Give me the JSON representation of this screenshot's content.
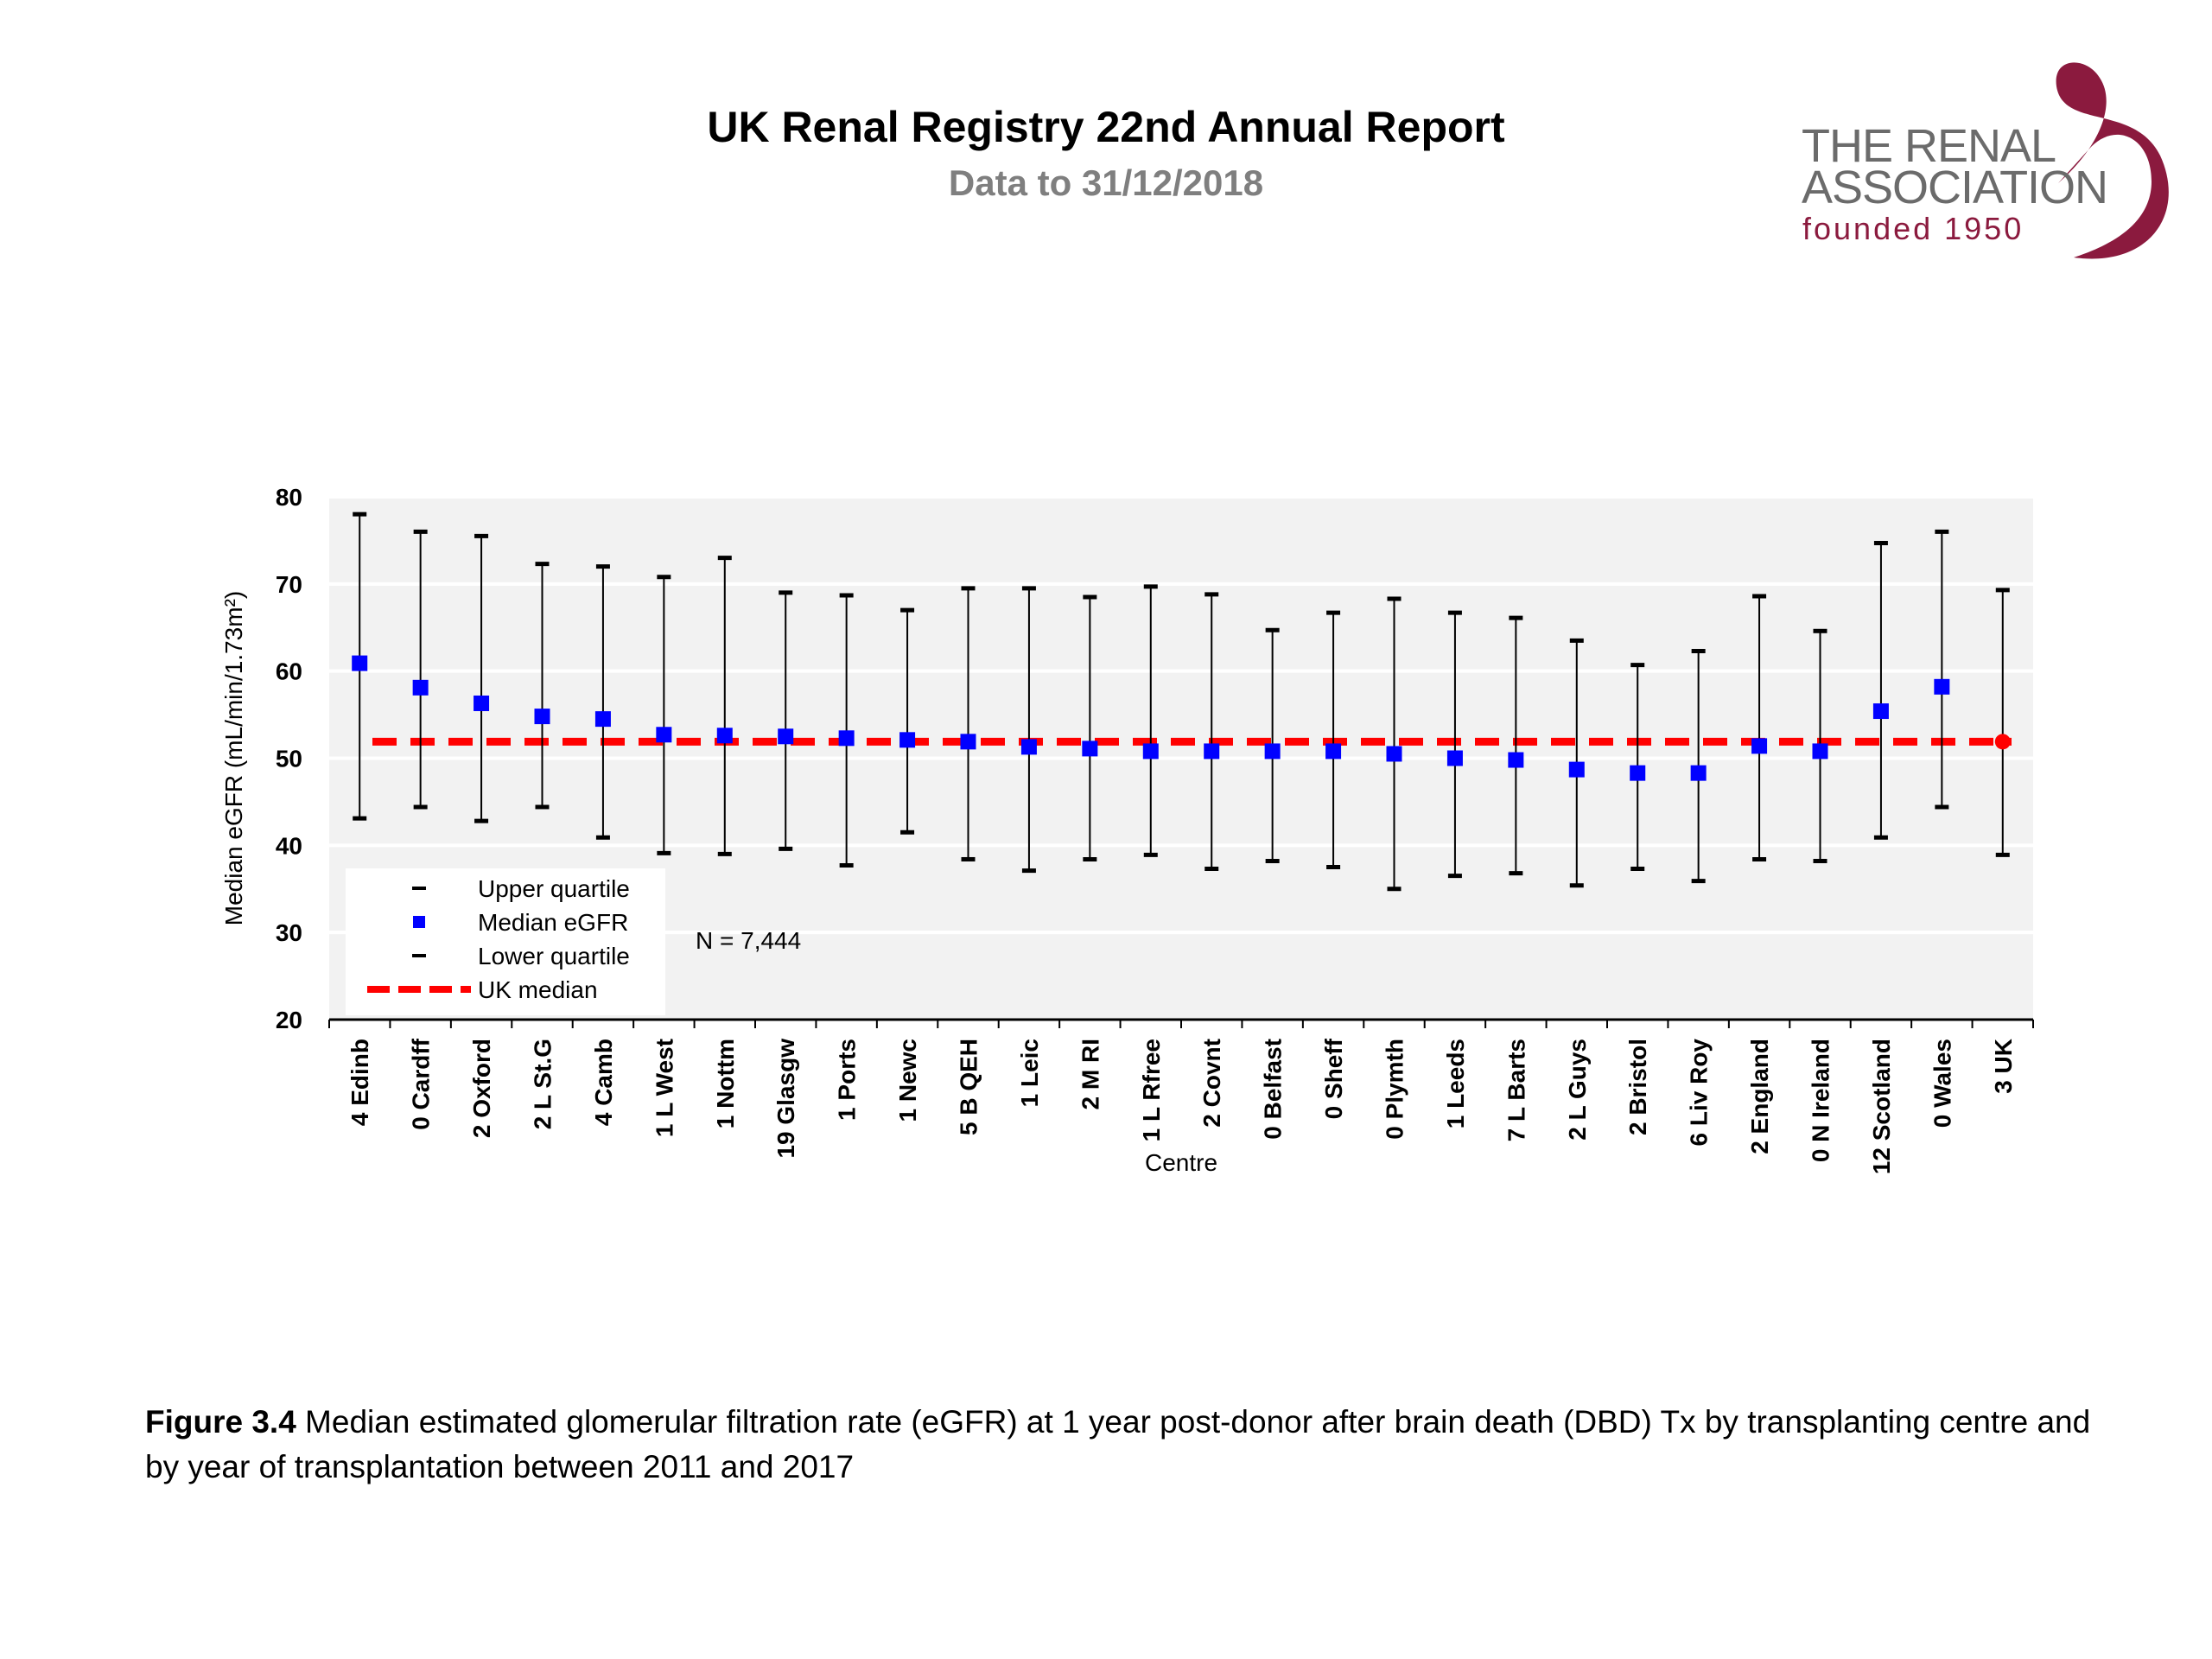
{
  "header": {
    "title": "UK Renal Registry 22nd Annual Report",
    "subtitle": "Data to 31/12/2018"
  },
  "logo": {
    "line1": "THE RENAL",
    "line2": "ASSOCIATION",
    "line3": "founded 1950"
  },
  "caption": {
    "label": "Figure 3.4",
    "text": " Median estimated glomerular filtration rate (eGFR) at 1 year post-donor after brain death (DBD) Tx by transplanting centre and by year of transplantation between 2011 and 2017"
  },
  "chart_data": {
    "type": "scatter",
    "xlabel": "Centre",
    "ylabel": "Median eGFR (mL/min/1.73m²)",
    "ylim": [
      20,
      80
    ],
    "yticks": [
      20,
      30,
      40,
      50,
      60,
      70,
      80
    ],
    "grid": true,
    "annotation": "N = 7,444",
    "uk_median": 51.9,
    "legend": {
      "placement": "bottom-left",
      "entries": [
        "Upper quartile",
        "Median eGFR",
        "Lower quartile",
        "UK median"
      ]
    },
    "colors": {
      "median": "#0000ff",
      "uk_median_line": "#ff0000",
      "whisker": "#000000",
      "plot_bg": "#f2f2f2"
    },
    "categories": [
      "4 Edinb",
      "0 Cardff",
      "2 Oxford",
      "2 L St.G",
      "4 Camb",
      "1 L West",
      "1 Nottm",
      "19 Glasgw",
      "1 Ports",
      "1 Newc",
      "5 B QEH",
      "1 Leic",
      "2 M RI",
      "1 L Rfree",
      "2 Covnt",
      "0 Belfast",
      "0 Sheff",
      "0 Plymth",
      "1 Leeds",
      "7 L Barts",
      "2 L Guys",
      "2 Bristol",
      "6 Liv Roy",
      "2 England",
      "0 N Ireland",
      "12 Scotland",
      "0 Wales",
      "3 UK"
    ],
    "series": [
      {
        "name": "Upper quartile",
        "values": [
          78,
          76,
          75.5,
          72.3,
          72,
          70.8,
          73,
          69,
          68.7,
          67,
          69.5,
          69.5,
          68.5,
          69.7,
          68.8,
          64.7,
          66.7,
          68.3,
          66.7,
          66.1,
          63.5,
          60.7,
          62.3,
          68.6,
          64.6,
          74.7,
          76,
          69.3
        ]
      },
      {
        "name": "Median eGFR",
        "values": [
          60.9,
          58.1,
          56.3,
          54.8,
          54.5,
          52.7,
          52.6,
          52.5,
          52.3,
          52.1,
          51.9,
          51.3,
          51.1,
          50.8,
          50.8,
          50.8,
          50.8,
          50.5,
          50.0,
          49.8,
          48.7,
          48.3,
          48.3,
          51.4,
          50.8,
          55.4,
          58.2,
          51.9
        ]
      },
      {
        "name": "Lower quartile",
        "values": [
          43.1,
          44.4,
          42.8,
          44.4,
          40.9,
          39.1,
          39,
          39.6,
          37.7,
          41.5,
          38.4,
          37.1,
          38.4,
          38.9,
          37.3,
          38.2,
          37.5,
          35,
          36.5,
          36.8,
          35.4,
          37.3,
          35.9,
          38.4,
          38.2,
          40.9,
          44.4,
          38.9
        ]
      }
    ]
  }
}
